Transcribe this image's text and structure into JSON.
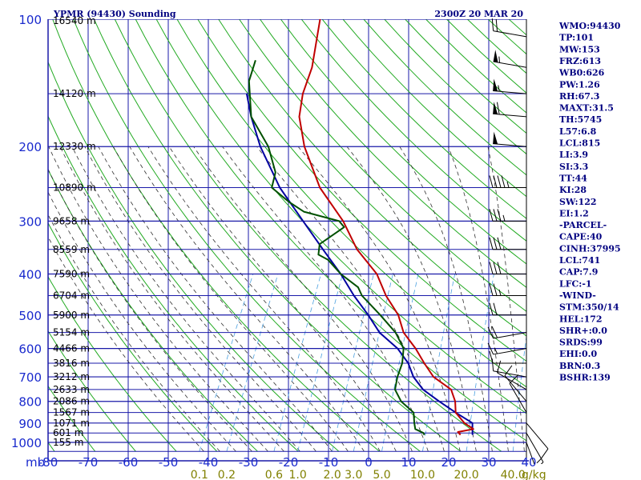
{
  "chart_data": {
    "type": "skew-t",
    "title": "YPMR (94430) Sounding",
    "time": "2300Z 20 MAR 20",
    "pressure_ticks": [
      100,
      200,
      300,
      400,
      500,
      600,
      700,
      800,
      900,
      1000
    ],
    "pressure_range_mb": [
      100,
      1050
    ],
    "pressure_unit": "mb",
    "temperature_ticks": [
      -80,
      -70,
      -60,
      -50,
      -40,
      -30,
      -20,
      -10,
      0,
      10,
      20,
      30,
      40
    ],
    "temperature_range_c": [
      -80,
      40
    ],
    "mixing_ratio_ticks": [
      "0.1",
      "0.2",
      "0.6",
      "1.0",
      "2.0",
      "3.0",
      "5.0",
      "10.0",
      "20.0",
      "40.0"
    ],
    "mixing_ratio_values": [
      0.1,
      0.2,
      0.6,
      1.0,
      2.0,
      3.0,
      5.0,
      10.0,
      20.0,
      40.0
    ],
    "mixing_ratio_unit": "g/kg",
    "height_labels": [
      {
        "p": 100,
        "label": "16540 m"
      },
      {
        "p": 150,
        "label": "14120 m"
      },
      {
        "p": 200,
        "label": "12330 m"
      },
      {
        "p": 250,
        "label": "10890 m"
      },
      {
        "p": 300,
        "label": "9658 m"
      },
      {
        "p": 350,
        "label": "8559 m"
      },
      {
        "p": 400,
        "label": "7590 m"
      },
      {
        "p": 450,
        "label": "6704 m"
      },
      {
        "p": 500,
        "label": "5900 m"
      },
      {
        "p": 550,
        "label": "5154 m"
      },
      {
        "p": 600,
        "label": "4466 m"
      },
      {
        "p": 650,
        "label": "3816 m"
      },
      {
        "p": 700,
        "label": "3212 m"
      },
      {
        "p": 750,
        "label": "2633 m"
      },
      {
        "p": 800,
        "label": "2086 m"
      },
      {
        "p": 850,
        "label": "1567 m"
      },
      {
        "p": 900,
        "label": "1071 m"
      },
      {
        "p": 950,
        "label": "601 m"
      },
      {
        "p": 1000,
        "label": "155 m"
      }
    ],
    "temperature_profile": [
      [
        960,
        22
      ],
      [
        945,
        21
      ],
      [
        930,
        24.5
      ],
      [
        900,
        21.5
      ],
      [
        850,
        18
      ],
      [
        800,
        16.5
      ],
      [
        750,
        14
      ],
      [
        700,
        8
      ],
      [
        650,
        4
      ],
      [
        600,
        0
      ],
      [
        550,
        -5
      ],
      [
        500,
        -8.5
      ],
      [
        450,
        -14
      ],
      [
        400,
        -19
      ],
      [
        350,
        -27
      ],
      [
        300,
        -34
      ],
      [
        250,
        -44
      ],
      [
        200,
        -53
      ],
      [
        170,
        -58
      ],
      [
        150,
        -60
      ],
      [
        130,
        -61
      ],
      [
        100,
        -65
      ]
    ],
    "dewpoint_profile": [
      [
        960,
        13
      ],
      [
        950,
        12.5
      ],
      [
        930,
        10
      ],
      [
        900,
        9
      ],
      [
        850,
        7.5
      ],
      [
        800,
        3
      ],
      [
        750,
        0
      ],
      [
        700,
        -1
      ],
      [
        650,
        -1.5
      ],
      [
        600,
        -3
      ],
      [
        550,
        -7
      ],
      [
        500,
        -13
      ],
      [
        450,
        -20
      ],
      [
        430,
        -22
      ],
      [
        400,
        -28
      ],
      [
        370,
        -33
      ],
      [
        360,
        -36
      ],
      [
        340,
        -37
      ],
      [
        310,
        -33
      ],
      [
        300,
        -35
      ],
      [
        285,
        -45
      ],
      [
        270,
        -50
      ],
      [
        250,
        -56
      ],
      [
        230,
        -57
      ],
      [
        200,
        -62
      ],
      [
        170,
        -70
      ],
      [
        140,
        -75
      ],
      [
        125,
        -76
      ]
    ],
    "parcel_path": [
      [
        960,
        25
      ],
      [
        900,
        23.5
      ],
      [
        850,
        18
      ],
      [
        800,
        12.5
      ],
      [
        750,
        7
      ],
      [
        700,
        3
      ],
      [
        650,
        0
      ],
      [
        600,
        -4.5
      ],
      [
        550,
        -11
      ],
      [
        500,
        -16
      ],
      [
        450,
        -22
      ],
      [
        400,
        -28
      ],
      [
        350,
        -35.5
      ],
      [
        300,
        -44
      ],
      [
        250,
        -54
      ],
      [
        200,
        -64
      ],
      [
        170,
        -70
      ],
      [
        150,
        -74
      ]
    ],
    "wind_barbs": [
      {
        "p": 110,
        "dir": 280,
        "spd": 20
      },
      {
        "p": 130,
        "dir": 280,
        "spd": 55
      },
      {
        "p": 150,
        "dir": 275,
        "spd": 55
      },
      {
        "p": 170,
        "dir": 275,
        "spd": 60
      },
      {
        "p": 200,
        "dir": 275,
        "spd": 50
      },
      {
        "p": 250,
        "dir": 270,
        "spd": 45
      },
      {
        "p": 300,
        "dir": 270,
        "spd": 35
      },
      {
        "p": 350,
        "dir": 270,
        "spd": 30
      },
      {
        "p": 400,
        "dir": 270,
        "spd": 30
      },
      {
        "p": 450,
        "dir": 270,
        "spd": 25
      },
      {
        "p": 500,
        "dir": 270,
        "spd": 20
      },
      {
        "p": 550,
        "dir": 260,
        "spd": 20
      },
      {
        "p": 600,
        "dir": 260,
        "spd": 15
      },
      {
        "p": 650,
        "dir": 270,
        "spd": 10
      },
      {
        "p": 700,
        "dir": 280,
        "spd": 10
      },
      {
        "p": 750,
        "dir": 300,
        "spd": 10
      },
      {
        "p": 800,
        "dir": 320,
        "spd": 10
      },
      {
        "p": 850,
        "dir": 330,
        "spd": 10
      },
      {
        "p": 900,
        "dir": 140,
        "spd": 10
      },
      {
        "p": 950,
        "dir": 150,
        "spd": 15
      },
      {
        "p": 1000,
        "dir": 160,
        "spd": 20
      }
    ],
    "indices": [
      "WMO:94430",
      "TP:101",
      "MW:153",
      "FRZ:613",
      "WB0:626",
      "PW:1.26",
      "RH:67.3",
      "MAXT:31.5",
      "TH:5745",
      "L57:6.8",
      "LCL:815",
      "LI:3.9",
      "SI:3.3",
      "TT:44",
      "KI:28",
      "SW:122",
      "EI:1.2",
      "-PARCEL-",
      "CAPE:40",
      "CINH:37995",
      "LCL:741",
      "CAP:7.9",
      "LFC:-1",
      "-WIND-",
      "STM:350/14",
      "HEL:172",
      "SHR+:0.0",
      "SRDS:99",
      "EHI:0.0",
      "BRN:0.3",
      "BSHR:139"
    ],
    "colors": {
      "isobar": "#1a1aa8",
      "isotherm": "#1a1aa8",
      "dry_adiabat": "#22aa22",
      "moist_adiabat": "#303030",
      "mixing_ratio": "#4aa0e0",
      "temperature": "#c00000",
      "dewpoint": "#005000",
      "parcel": "#0000a0",
      "text": "#000080",
      "axis_label": "#1a2acd",
      "mixing_label": "#808000"
    }
  }
}
